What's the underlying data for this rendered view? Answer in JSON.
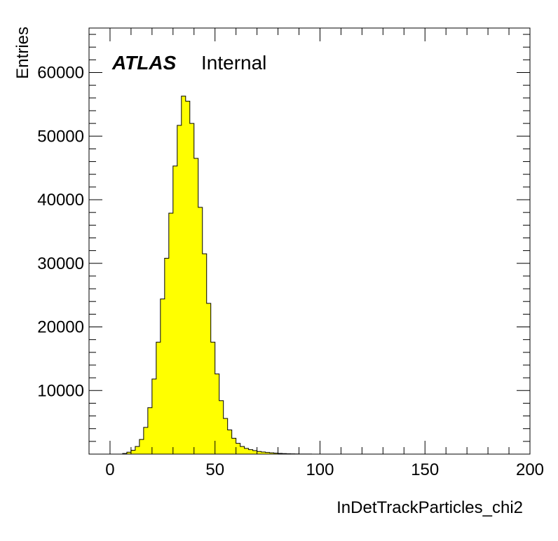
{
  "chart_data": {
    "type": "bar",
    "histogram": true,
    "xlabel": "InDetTrackParticles_chi2",
    "ylabel": "Entries",
    "xlim": [
      -10,
      200
    ],
    "ylim": [
      0,
      67000
    ],
    "x_ticks": [
      0,
      50,
      100,
      150,
      200
    ],
    "y_ticks": [
      10000,
      20000,
      30000,
      40000,
      50000,
      60000
    ],
    "bin_width": 2,
    "bin_start": 0,
    "values": [
      0,
      0,
      0,
      100,
      300,
      600,
      1200,
      2300,
      4200,
      7300,
      11800,
      17600,
      24400,
      30800,
      37900,
      45300,
      51700,
      56300,
      55500,
      52000,
      46500,
      38800,
      31500,
      23700,
      17600,
      12600,
      8400,
      5600,
      3800,
      2500,
      1700,
      1200,
      900,
      700,
      550,
      420,
      330,
      260,
      200,
      150,
      110,
      80,
      60,
      45,
      30,
      20,
      15,
      10,
      5,
      3,
      0,
      0,
      0,
      0,
      0,
      0,
      0,
      0,
      0,
      0,
      0,
      0,
      0,
      0,
      0,
      0,
      0,
      0,
      0,
      0,
      0,
      0,
      0,
      0,
      0,
      0,
      0,
      0,
      0,
      0,
      0,
      0,
      0,
      0,
      0,
      0,
      0,
      0,
      0,
      0,
      0,
      0,
      0,
      0,
      0,
      0,
      0,
      0,
      0,
      0
    ],
    "fill_color": "#ffff00",
    "line_color": "#000000",
    "annotation": {
      "bold": "ATLAS",
      "text": "Internal"
    }
  }
}
